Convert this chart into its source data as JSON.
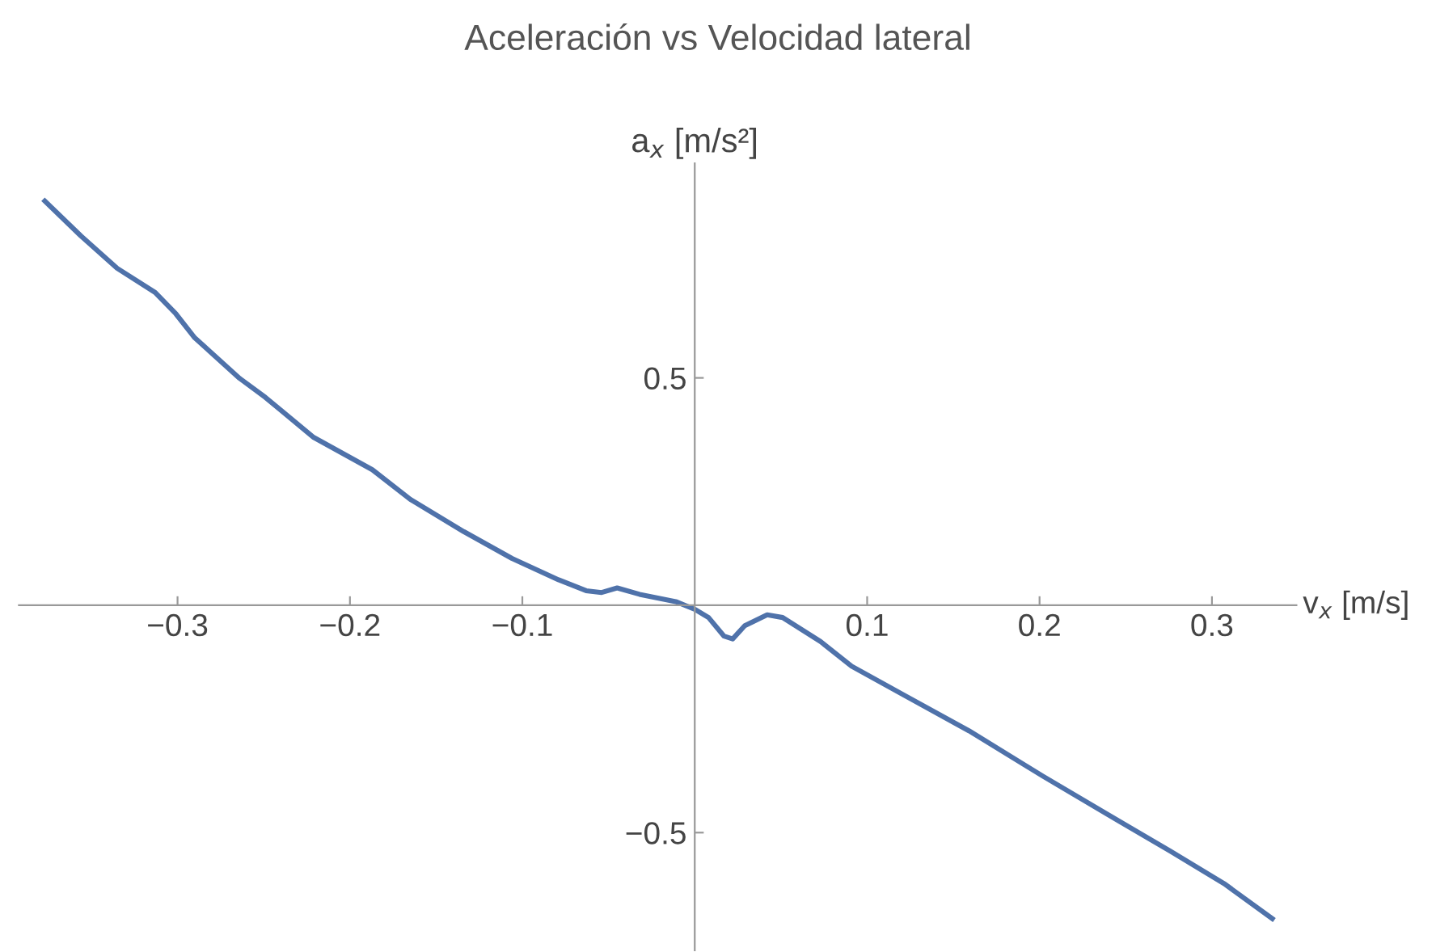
{
  "chart_data": {
    "type": "line",
    "title": "Aceleración vs Velocidad lateral",
    "xlabel": "v$_{x}$ [m/s]",
    "ylabel": "a$_{x}$ [m/s²]",
    "x": [
      -0.377,
      -0.356,
      -0.335,
      -0.313,
      -0.301,
      -0.29,
      -0.264,
      -0.249,
      -0.221,
      -0.187,
      -0.165,
      -0.134,
      -0.106,
      -0.079,
      -0.063,
      -0.054,
      -0.045,
      -0.032,
      -0.011,
      0,
      0.008,
      0.017,
      0.022,
      0.029,
      0.042,
      0.051,
      0.073,
      0.091,
      0.122,
      0.159,
      0.202,
      0.239,
      0.276,
      0.307,
      0.335
    ],
    "series": [
      {
        "color": "#4f72aa",
        "values": [
          0.889,
          0.812,
          0.741,
          0.688,
          0.641,
          0.588,
          0.499,
          0.457,
          0.369,
          0.298,
          0.233,
          0.162,
          0.103,
          0.056,
          0.032,
          0.028,
          0.038,
          0.024,
          0.008,
          -0.009,
          -0.027,
          -0.068,
          -0.074,
          -0.045,
          -0.021,
          -0.027,
          -0.08,
          -0.134,
          -0.199,
          -0.276,
          -0.376,
          -0.459,
          -0.541,
          -0.612,
          -0.689
        ]
      }
    ],
    "xlim": [
      -0.392,
      0.349
    ],
    "ylim": [
      -0.759,
      0.972
    ],
    "xticks": [
      {
        "value": -0.3,
        "label": "−0.3"
      },
      {
        "value": -0.2,
        "label": "−0.2"
      },
      {
        "value": -0.1,
        "label": "−0.1"
      },
      0.1,
      0.2,
      0.3
    ],
    "yticks": [
      {
        "value": -0.5,
        "label": "−0.5"
      },
      0.5
    ],
    "grid": false,
    "legend": false,
    "marker": "none",
    "line_style": "solid"
  }
}
